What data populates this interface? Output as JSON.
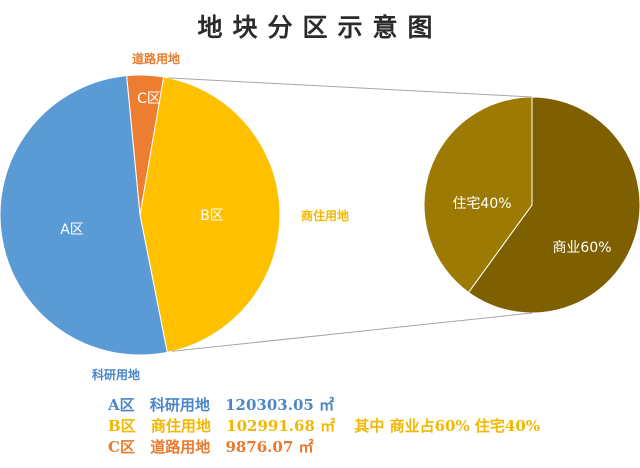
{
  "title": "地块分区示意图",
  "chart_data": [
    {
      "type": "pie",
      "title": "",
      "slices": [
        {
          "label": "A区",
          "outer_label": "科研用地",
          "value": 120303.05,
          "color": "#5b9bd5"
        },
        {
          "label": "B区",
          "outer_label": "商住用地",
          "value": 102991.68,
          "color": "#ffc000"
        },
        {
          "label": "C区",
          "outer_label": "道路用地",
          "value": 9876.07,
          "color": "#ed7d31"
        }
      ]
    },
    {
      "type": "pie",
      "title": "",
      "exploded_from": "B区",
      "slices": [
        {
          "label": "商业60%",
          "value": 60,
          "color": "#7f6000"
        },
        {
          "label": "住宅40%",
          "value": 40,
          "color": "#9c7a04"
        }
      ]
    }
  ],
  "legend": {
    "rows": [
      {
        "zone": "A区",
        "use": "科研用地",
        "area": "120303.05 ㎡",
        "color": "#4a86c8",
        "extra": ""
      },
      {
        "zone": "B区",
        "use": "商住用地",
        "area": "102991.68 ㎡",
        "color": "#f2b800",
        "extra": "其中 商业占60% 住宅40%"
      },
      {
        "zone": "C区",
        "use": "道路用地",
        "area": "9876.07 ㎡",
        "color": "#e97a2c",
        "extra": ""
      }
    ]
  }
}
